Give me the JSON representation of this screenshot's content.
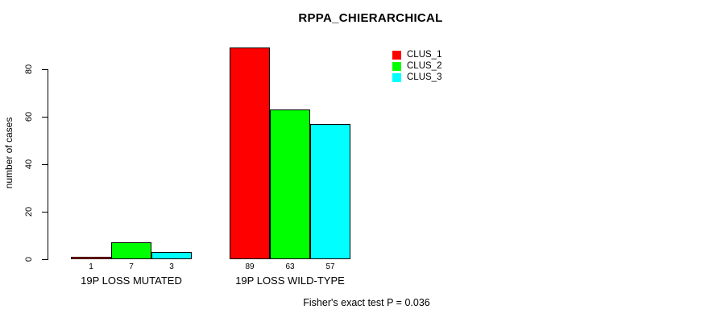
{
  "chart_data": {
    "type": "bar",
    "title": "RPPA_CHIERARCHICAL",
    "ylabel": "number of cases",
    "xlabel": "",
    "categories": [
      "19P LOSS MUTATED",
      "19P LOSS WILD-TYPE"
    ],
    "series": [
      {
        "name": "CLUS_1",
        "color": "#ff0000",
        "values": [
          1,
          89
        ]
      },
      {
        "name": "CLUS_2",
        "color": "#00ff00",
        "values": [
          7,
          63
        ]
      },
      {
        "name": "CLUS_3",
        "color": "#00ffff",
        "values": [
          3,
          57
        ]
      }
    ],
    "yticks": [
      0,
      20,
      40,
      60,
      80
    ],
    "ylim": [
      0,
      89
    ],
    "grid": false,
    "legend_position": "top-right",
    "bar_value_labels_shown": true,
    "annotation": "Fisher's exact test P = 0.036"
  },
  "colors": {
    "background": "#ffffff",
    "axis": "#000000",
    "text": "#000000",
    "clus_1": "#ff0000",
    "clus_2": "#00ff00",
    "clus_3": "#00ffff"
  }
}
